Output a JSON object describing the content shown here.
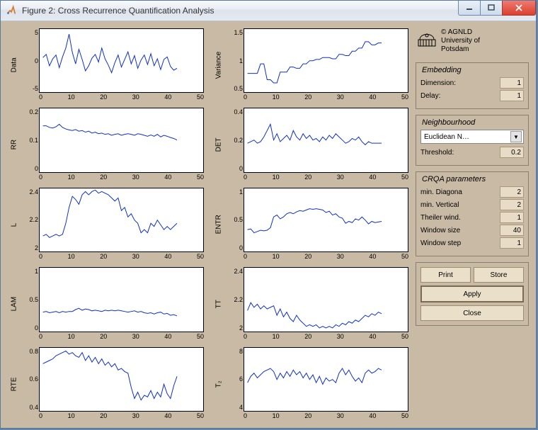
{
  "window": {
    "title": "Figure 2: Cross Recurrence Quantification Analysis"
  },
  "attribution": {
    "line1": "© AGNLD",
    "line2": "University of",
    "line3": "Potsdam"
  },
  "colors": {
    "panel_bg": "#c9baa5",
    "axes_bg": "#ffffff",
    "line_color": "#1030c8",
    "field_bg": "#e8dcc7",
    "btn_bg": "#eadfc9"
  },
  "panels": {
    "embedding": {
      "title": "Embedding",
      "dimension_label": "Dimension:",
      "dimension_value": "1",
      "delay_label": "Delay:",
      "delay_value": "1"
    },
    "neighbourhood": {
      "title": "Neighbourhood",
      "method": "Euclidean N…",
      "threshold_label": "Threshold:",
      "threshold_value": "0.2"
    },
    "crqa": {
      "title": "CRQA parameters",
      "min_diag_label": "min. Diagona",
      "min_diag_value": "2",
      "min_vert_label": "min. Vertical",
      "min_vert_value": "2",
      "theiler_label": "Theiler wind.",
      "theiler_value": "1",
      "winsize_label": "Window size",
      "winsize_value": "40",
      "winstep_label": "Window step",
      "winstep_value": "1"
    }
  },
  "buttons": {
    "print": "Print",
    "store": "Store",
    "apply": "Apply",
    "close": "Close"
  },
  "charts": {
    "common": {
      "xlim": [
        0,
        50
      ],
      "xticks": [
        0,
        10,
        20,
        30,
        40,
        50
      ],
      "xdata_end": 42
    },
    "grid": [
      {
        "id": "data",
        "ylabel": "Data",
        "ylim": [
          -5,
          5
        ],
        "yticks": [
          5,
          0,
          -5
        ],
        "series": [
          0.5,
          1.0,
          -0.8,
          0.3,
          0.9,
          -1.1,
          0.6,
          2.0,
          4.2,
          1.3,
          -0.5,
          1.8,
          0.2,
          -1.6,
          -0.8,
          0.4,
          1.0,
          -0.2,
          2.0,
          0.3,
          -0.7,
          -1.9,
          -0.3,
          0.9,
          -1.0,
          0.2,
          1.4,
          -0.5,
          0.8,
          -1.2,
          0.1,
          0.9,
          -0.6,
          1.1,
          -0.8,
          0.3,
          -1.4,
          0.2,
          0.6,
          -0.9,
          -1.5,
          -1.2
        ]
      },
      {
        "id": "variance",
        "ylabel": "Variance",
        "ylim": [
          0.5,
          1.5
        ],
        "yticks": [
          1.5,
          1,
          0.5
        ],
        "series": [
          0.8,
          0.8,
          0.8,
          0.8,
          0.95,
          0.95,
          0.7,
          0.7,
          0.65,
          0.65,
          0.82,
          0.82,
          0.82,
          0.9,
          0.9,
          0.88,
          0.88,
          0.95,
          0.95,
          1.0,
          1.0,
          1.02,
          1.02,
          1.05,
          1.05,
          1.05,
          1.03,
          1.03,
          1.1,
          1.1,
          1.08,
          1.08,
          1.15,
          1.15,
          1.2,
          1.2,
          1.3,
          1.3,
          1.25,
          1.25,
          1.28,
          1.28
        ]
      },
      {
        "id": "rr",
        "ylabel": "RR",
        "ylim": [
          0,
          0.2
        ],
        "yticks": [
          0.2,
          0.1,
          0
        ],
        "series": [
          0.145,
          0.145,
          0.14,
          0.138,
          0.142,
          0.15,
          0.14,
          0.135,
          0.132,
          0.13,
          0.133,
          0.128,
          0.13,
          0.125,
          0.128,
          0.122,
          0.125,
          0.12,
          0.122,
          0.118,
          0.12,
          0.115,
          0.118,
          0.12,
          0.115,
          0.118,
          0.12,
          0.118,
          0.115,
          0.12,
          0.118,
          0.115,
          0.112,
          0.116,
          0.112,
          0.118,
          0.11,
          0.115,
          0.112,
          0.108,
          0.105,
          0.1
        ]
      },
      {
        "id": "det",
        "ylabel": "DET",
        "ylim": [
          0,
          0.4
        ],
        "yticks": [
          0.4,
          0.2,
          0
        ],
        "series": [
          0.18,
          0.19,
          0.2,
          0.18,
          0.19,
          0.22,
          0.26,
          0.3,
          0.2,
          0.24,
          0.19,
          0.21,
          0.23,
          0.2,
          0.26,
          0.22,
          0.2,
          0.24,
          0.21,
          0.23,
          0.2,
          0.21,
          0.19,
          0.22,
          0.2,
          0.23,
          0.21,
          0.24,
          0.22,
          0.2,
          0.18,
          0.19,
          0.21,
          0.2,
          0.22,
          0.19,
          0.17,
          0.19,
          0.18,
          0.18,
          0.18,
          0.18
        ]
      },
      {
        "id": "l",
        "ylabel": "L",
        "ylim": [
          2,
          2.4
        ],
        "yticks": [
          2.4,
          2.2,
          2
        ],
        "series": [
          2.1,
          2.11,
          2.09,
          2.1,
          2.11,
          2.1,
          2.11,
          2.18,
          2.28,
          2.35,
          2.33,
          2.3,
          2.36,
          2.38,
          2.36,
          2.38,
          2.39,
          2.37,
          2.38,
          2.37,
          2.36,
          2.34,
          2.32,
          2.34,
          2.26,
          2.28,
          2.22,
          2.24,
          2.2,
          2.18,
          2.12,
          2.14,
          2.12,
          2.18,
          2.16,
          2.2,
          2.17,
          2.14,
          2.16,
          2.14,
          2.16,
          2.18
        ]
      },
      {
        "id": "entr",
        "ylabel": "ENTR",
        "ylim": [
          0,
          1
        ],
        "yticks": [
          1,
          0.5,
          0
        ],
        "series": [
          0.35,
          0.36,
          0.3,
          0.32,
          0.34,
          0.33,
          0.34,
          0.38,
          0.55,
          0.58,
          0.52,
          0.55,
          0.6,
          0.62,
          0.6,
          0.63,
          0.65,
          0.64,
          0.66,
          0.68,
          0.67,
          0.68,
          0.67,
          0.66,
          0.62,
          0.64,
          0.58,
          0.6,
          0.55,
          0.53,
          0.45,
          0.48,
          0.46,
          0.52,
          0.5,
          0.55,
          0.5,
          0.44,
          0.48,
          0.46,
          0.47,
          0.48
        ]
      },
      {
        "id": "lam",
        "ylabel": "LAM",
        "ylim": [
          0,
          1
        ],
        "yticks": [
          1,
          0.5,
          0
        ],
        "series": [
          0.3,
          0.31,
          0.29,
          0.3,
          0.31,
          0.29,
          0.31,
          0.3,
          0.31,
          0.31,
          0.34,
          0.36,
          0.33,
          0.35,
          0.34,
          0.32,
          0.33,
          0.32,
          0.31,
          0.33,
          0.32,
          0.33,
          0.32,
          0.33,
          0.32,
          0.31,
          0.3,
          0.31,
          0.32,
          0.3,
          0.31,
          0.29,
          0.28,
          0.29,
          0.27,
          0.29,
          0.3,
          0.27,
          0.28,
          0.25,
          0.26,
          0.24
        ]
      },
      {
        "id": "tt",
        "ylabel": "TT",
        "ylim": [
          2,
          2.4
        ],
        "yticks": [
          2.4,
          2.2,
          2
        ],
        "series": [
          2.13,
          2.18,
          2.15,
          2.17,
          2.14,
          2.16,
          2.14,
          2.15,
          2.16,
          2.1,
          2.14,
          2.09,
          2.12,
          2.08,
          2.06,
          2.1,
          2.07,
          2.05,
          2.03,
          2.04,
          2.03,
          2.04,
          2.02,
          2.03,
          2.02,
          2.03,
          2.02,
          2.04,
          2.03,
          2.05,
          2.04,
          2.06,
          2.05,
          2.07,
          2.06,
          2.08,
          2.1,
          2.09,
          2.11,
          2.1,
          2.12,
          2.11
        ]
      },
      {
        "id": "rte",
        "ylabel": "RTE",
        "ylim": [
          0.4,
          0.8
        ],
        "yticks": [
          0.8,
          0.6,
          0.4
        ],
        "series": [
          0.7,
          0.71,
          0.72,
          0.73,
          0.75,
          0.76,
          0.77,
          0.78,
          0.76,
          0.77,
          0.75,
          0.74,
          0.77,
          0.72,
          0.75,
          0.71,
          0.74,
          0.7,
          0.73,
          0.69,
          0.71,
          0.68,
          0.7,
          0.66,
          0.67,
          0.65,
          0.64,
          0.55,
          0.48,
          0.52,
          0.47,
          0.5,
          0.49,
          0.53,
          0.48,
          0.52,
          0.49,
          0.57,
          0.51,
          0.48,
          0.56,
          0.62
        ]
      },
      {
        "id": "t2",
        "ylabel": "T₂",
        "ylim": [
          4,
          8
        ],
        "yticks": [
          8,
          6,
          4
        ],
        "series": [
          5.8,
          6.2,
          6.4,
          6.1,
          6.3,
          6.5,
          6.6,
          6.7,
          6.5,
          6.0,
          6.4,
          6.1,
          6.5,
          6.2,
          6.6,
          6.3,
          6.5,
          6.1,
          6.4,
          6.0,
          6.3,
          5.8,
          6.2,
          5.7,
          6.1,
          5.9,
          6.0,
          5.8,
          6.4,
          6.7,
          6.3,
          6.6,
          6.2,
          5.9,
          6.1,
          5.8,
          6.4,
          6.6,
          6.4,
          6.5,
          6.7,
          6.6
        ]
      }
    ]
  }
}
